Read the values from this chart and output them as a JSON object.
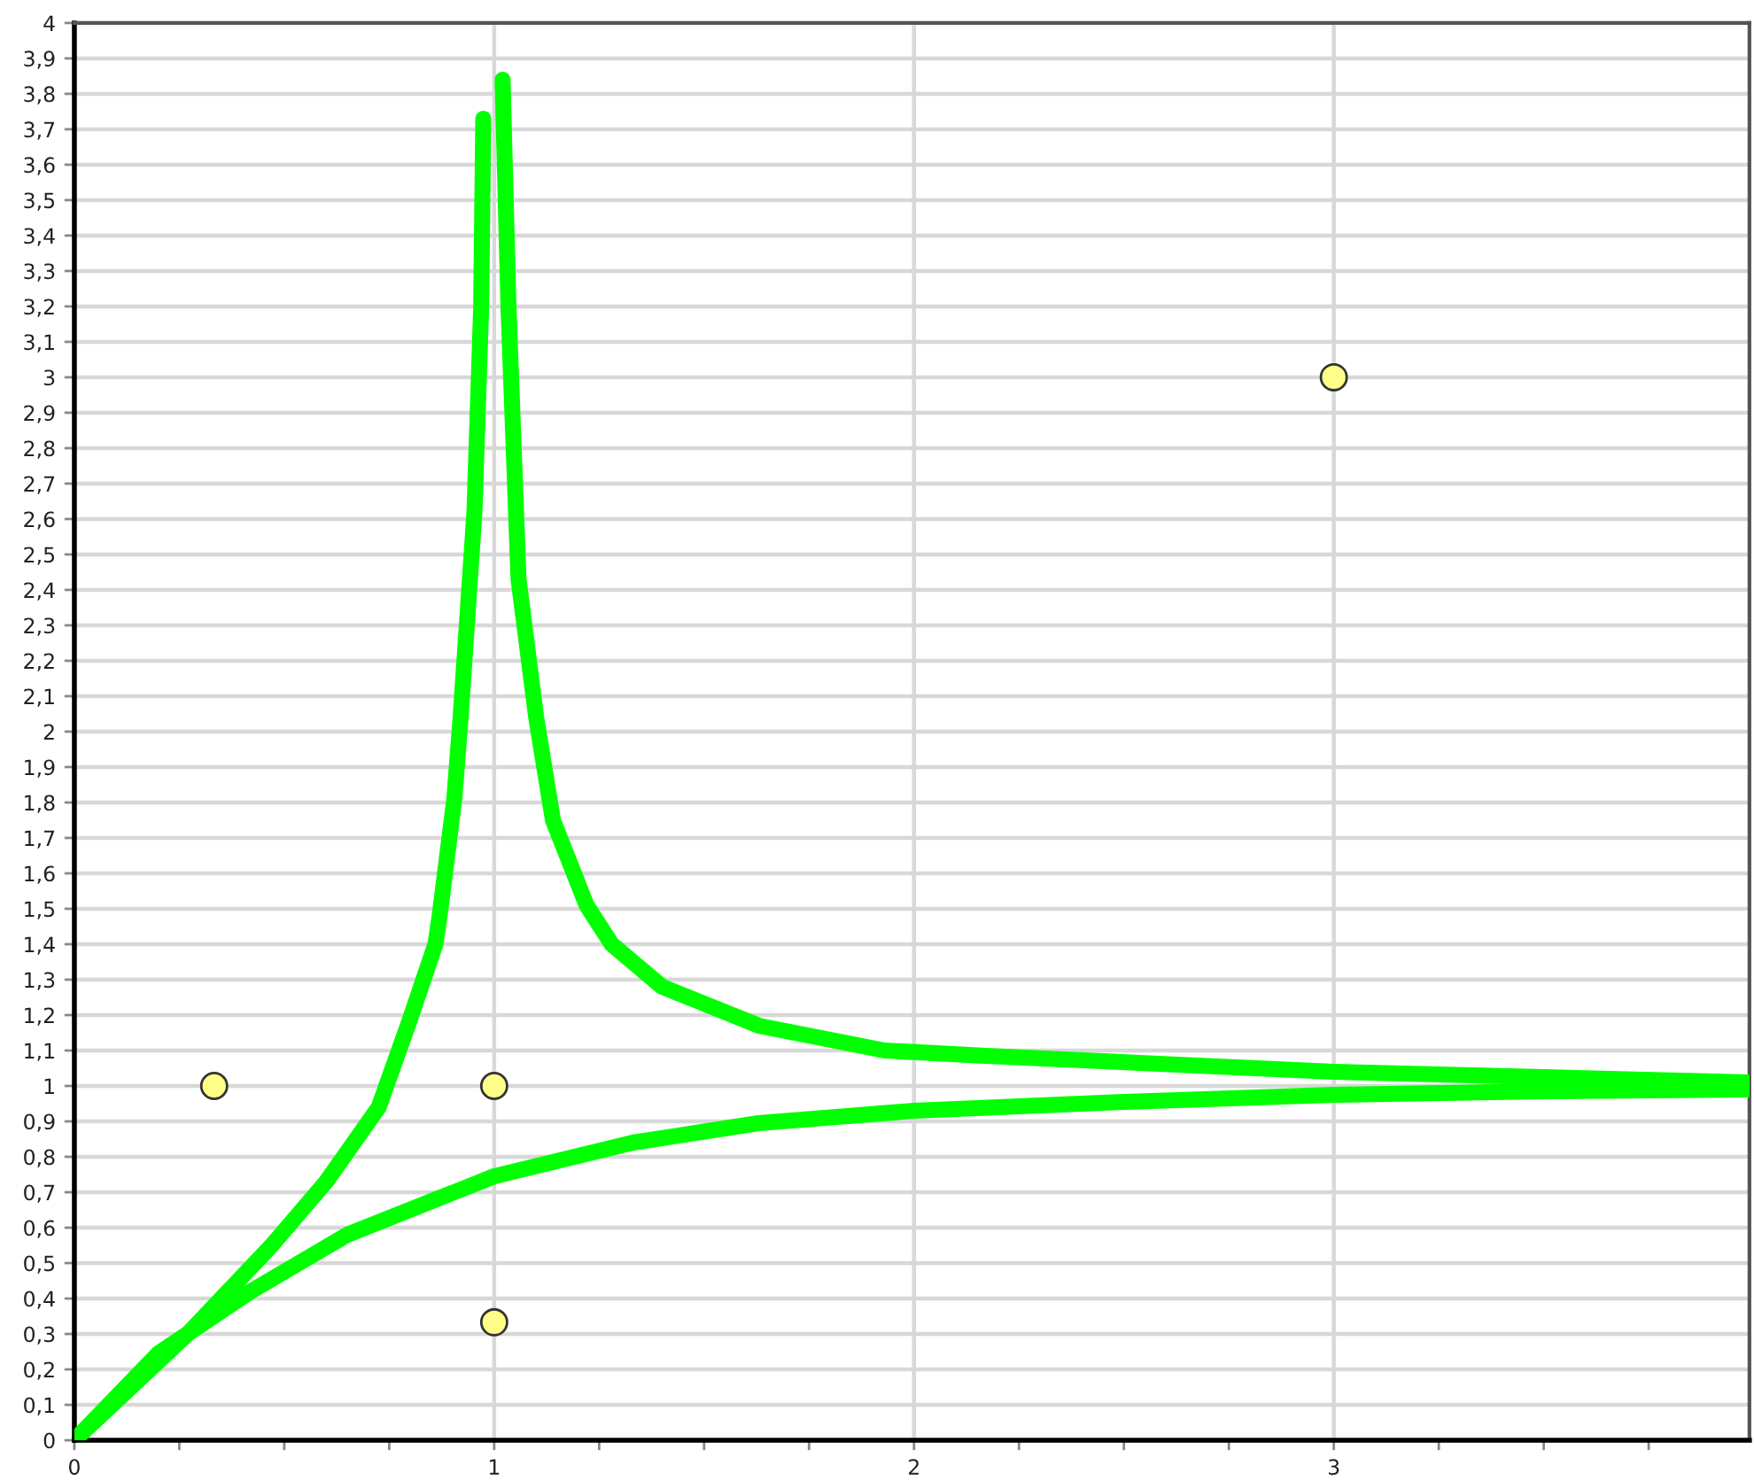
{
  "chart_data": {
    "type": "line",
    "xlim": [
      0,
      3.99
    ],
    "ylim": [
      0,
      4
    ],
    "xticks": [
      0,
      {
        "value": 0.25,
        "label": null
      },
      {
        "value": 0.5,
        "label": null
      },
      {
        "value": 0.75,
        "label": null
      },
      1,
      {
        "value": 1.25,
        "label": null
      },
      {
        "value": 1.5,
        "label": null
      },
      {
        "value": 1.75,
        "label": null
      },
      2,
      {
        "value": 2.25,
        "label": null
      },
      {
        "value": 2.5,
        "label": null
      },
      {
        "value": 2.75,
        "label": null
      },
      3,
      {
        "value": 3.25,
        "label": null
      },
      {
        "value": 3.5,
        "label": null
      },
      {
        "value": 3.75,
        "label": null
      }
    ],
    "yticks": [
      0,
      {
        "value": 0.1,
        "label": "0,1"
      },
      {
        "value": 0.2,
        "label": "0,2"
      },
      {
        "value": 0.3,
        "label": "0,3"
      },
      {
        "value": 0.4,
        "label": "0,4"
      },
      {
        "value": 0.5,
        "label": "0,5"
      },
      {
        "value": 0.6,
        "label": "0,6"
      },
      {
        "value": 0.7,
        "label": "0,7"
      },
      {
        "value": 0.8,
        "label": "0,8"
      },
      {
        "value": 0.9,
        "label": "0,9"
      },
      1,
      {
        "value": 1.1,
        "label": "1,1"
      },
      {
        "value": 1.2,
        "label": "1,2"
      },
      {
        "value": 1.3,
        "label": "1,3"
      },
      {
        "value": 1.4,
        "label": "1,4"
      },
      {
        "value": 1.5,
        "label": "1,5"
      },
      {
        "value": 1.6,
        "label": "1,6"
      },
      {
        "value": 1.7,
        "label": "1,7"
      },
      {
        "value": 1.8,
        "label": "1,8"
      },
      {
        "value": 1.9,
        "label": "1,9"
      },
      2,
      {
        "value": 2.1,
        "label": "2,1"
      },
      {
        "value": 2.2,
        "label": "2,2"
      },
      {
        "value": 2.3,
        "label": "2,3"
      },
      {
        "value": 2.4,
        "label": "2,4"
      },
      {
        "value": 2.5,
        "label": "2,5"
      },
      {
        "value": 2.6,
        "label": "2,6"
      },
      {
        "value": 2.7,
        "label": "2,7"
      },
      {
        "value": 2.8,
        "label": "2,8"
      },
      {
        "value": 2.9,
        "label": "2,9"
      },
      3,
      {
        "value": 3.1,
        "label": "3,1"
      },
      {
        "value": 3.2,
        "label": "3,2"
      },
      {
        "value": 3.3,
        "label": "3,3"
      },
      {
        "value": 3.4,
        "label": "3,4"
      },
      {
        "value": 3.5,
        "label": "3,5"
      },
      {
        "value": 3.6,
        "label": "3,6"
      },
      {
        "value": 3.7,
        "label": "3,7"
      },
      {
        "value": 3.8,
        "label": "3,8"
      },
      {
        "value": 3.9,
        "label": "3,9"
      },
      4
    ],
    "grid": true,
    "marker": "none",
    "line_style": "solid",
    "series": [
      {
        "color": "#00ff00",
        "x": [
          0,
          0.27,
          0.47,
          0.6,
          0.725,
          0.8,
          0.86,
          0.87,
          0.905,
          0.92,
          0.953,
          0.969,
          0.974,
          null,
          1.02,
          1.034,
          1.058,
          1.1,
          1.14,
          1.22,
          1.28,
          1.4,
          1.63,
          1.93,
          2.17,
          3,
          3.5,
          3.99
        ],
        "values": [
          0,
          0.3,
          0.55,
          0.73,
          0.94,
          1.19,
          1.4,
          1.48,
          1.81,
          2.04,
          2.62,
          3.2,
          3.73,
          null,
          3.84,
          3.2,
          2.43,
          2.04,
          1.75,
          1.51,
          1.4,
          1.28,
          1.17,
          1.1,
          1.085,
          1.04,
          1.025,
          1.01
        ]
      },
      {
        "color": "#00ff00",
        "x": [
          0,
          0.2,
          0.42,
          0.65,
          1.0,
          1.33,
          1.63,
          2.0,
          2.5,
          3,
          3.5,
          3.99
        ],
        "values": [
          0,
          0.245,
          0.42,
          0.58,
          0.745,
          0.84,
          0.895,
          0.93,
          0.955,
          0.975,
          0.985,
          0.99
        ]
      },
      {
        "type": "scatter",
        "marker": "circle",
        "color": "#ffff88",
        "x": [
          0.333,
          1,
          1,
          3
        ],
        "values": [
          1,
          1,
          0.333,
          3
        ]
      }
    ]
  }
}
